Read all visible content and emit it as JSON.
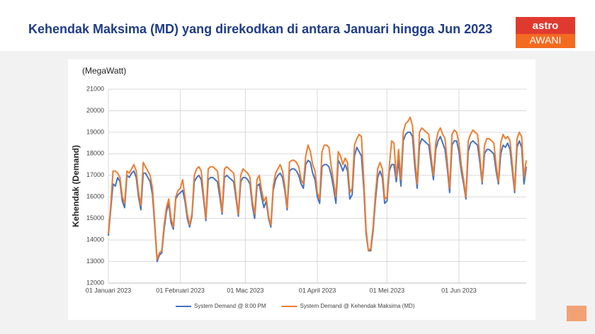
{
  "logo": {
    "top": "astro",
    "bottom": "AWANI"
  },
  "chart_data": {
    "type": "line",
    "title": "Kehendak Maksima (MD) yang direkodkan di antara Januari hingga Jun 2023",
    "unit_label": "(MegaWatt)",
    "y_label": "Kehendak (Demand)",
    "ylim": [
      12000,
      21000
    ],
    "yticks": [
      12000,
      13000,
      14000,
      15000,
      16000,
      17000,
      18000,
      19000,
      20000,
      21000
    ],
    "xlim": [
      "2023-01-01",
      "2023-06-30"
    ],
    "xticks": [
      {
        "value": "2023-01-01",
        "label": "01 Januari 2023"
      },
      {
        "value": "2023-02-01",
        "label": "01 Februari 2023"
      },
      {
        "value": "2023-03-01",
        "label": "01 Mac 2023"
      },
      {
        "value": "2023-04-01",
        "label": "01 April 2023"
      },
      {
        "value": "2023-05-01",
        "label": "01 Mei 2023"
      },
      {
        "value": "2023-06-01",
        "label": "01 Jun 2023"
      }
    ],
    "grid": true,
    "legend": "bottom",
    "x": [
      "2023-01-01",
      "2023-01-02",
      "2023-01-03",
      "2023-01-04",
      "2023-01-05",
      "2023-01-06",
      "2023-01-07",
      "2023-01-08",
      "2023-01-09",
      "2023-01-10",
      "2023-01-11",
      "2023-01-12",
      "2023-01-13",
      "2023-01-14",
      "2023-01-15",
      "2023-01-16",
      "2023-01-17",
      "2023-01-18",
      "2023-01-19",
      "2023-01-20",
      "2023-01-21",
      "2023-01-22",
      "2023-01-23",
      "2023-01-24",
      "2023-01-25",
      "2023-01-26",
      "2023-01-27",
      "2023-01-28",
      "2023-01-29",
      "2023-01-30",
      "2023-01-31",
      "2023-02-01",
      "2023-02-02",
      "2023-02-03",
      "2023-02-04",
      "2023-02-05",
      "2023-02-06",
      "2023-02-07",
      "2023-02-08",
      "2023-02-09",
      "2023-02-10",
      "2023-02-11",
      "2023-02-12",
      "2023-02-13",
      "2023-02-14",
      "2023-02-15",
      "2023-02-16",
      "2023-02-17",
      "2023-02-18",
      "2023-02-19",
      "2023-02-20",
      "2023-02-21",
      "2023-02-22",
      "2023-02-23",
      "2023-02-24",
      "2023-02-25",
      "2023-02-26",
      "2023-02-27",
      "2023-02-28",
      "2023-03-01",
      "2023-03-02",
      "2023-03-03",
      "2023-03-04",
      "2023-03-05",
      "2023-03-06",
      "2023-03-07",
      "2023-03-08",
      "2023-03-09",
      "2023-03-10",
      "2023-03-11",
      "2023-03-12",
      "2023-03-13",
      "2023-03-14",
      "2023-03-15",
      "2023-03-16",
      "2023-03-17",
      "2023-03-18",
      "2023-03-19",
      "2023-03-20",
      "2023-03-21",
      "2023-03-22",
      "2023-03-23",
      "2023-03-24",
      "2023-03-25",
      "2023-03-26",
      "2023-03-27",
      "2023-03-28",
      "2023-03-29",
      "2023-03-30",
      "2023-03-31",
      "2023-04-01",
      "2023-04-02",
      "2023-04-03",
      "2023-04-04",
      "2023-04-05",
      "2023-04-06",
      "2023-04-07",
      "2023-04-08",
      "2023-04-09",
      "2023-04-10",
      "2023-04-11",
      "2023-04-12",
      "2023-04-13",
      "2023-04-14",
      "2023-04-15",
      "2023-04-16",
      "2023-04-17",
      "2023-04-18",
      "2023-04-19",
      "2023-04-20",
      "2023-04-21",
      "2023-04-22",
      "2023-04-23",
      "2023-04-24",
      "2023-04-25",
      "2023-04-26",
      "2023-04-27",
      "2023-04-28",
      "2023-04-29",
      "2023-04-30",
      "2023-05-01",
      "2023-05-02",
      "2023-05-03",
      "2023-05-04",
      "2023-05-05",
      "2023-05-06",
      "2023-05-07",
      "2023-05-08",
      "2023-05-09",
      "2023-05-10",
      "2023-05-11",
      "2023-05-12",
      "2023-05-13",
      "2023-05-14",
      "2023-05-15",
      "2023-05-16",
      "2023-05-17",
      "2023-05-18",
      "2023-05-19",
      "2023-05-20",
      "2023-05-21",
      "2023-05-22",
      "2023-05-23",
      "2023-05-24",
      "2023-05-25",
      "2023-05-26",
      "2023-05-27",
      "2023-05-28",
      "2023-05-29",
      "2023-05-30",
      "2023-05-31",
      "2023-06-01",
      "2023-06-02",
      "2023-06-03",
      "2023-06-04",
      "2023-06-05",
      "2023-06-06",
      "2023-06-07",
      "2023-06-08",
      "2023-06-09",
      "2023-06-10",
      "2023-06-11",
      "2023-06-12",
      "2023-06-13",
      "2023-06-14",
      "2023-06-15",
      "2023-06-16",
      "2023-06-17",
      "2023-06-18",
      "2023-06-19",
      "2023-06-20",
      "2023-06-21",
      "2023-06-22",
      "2023-06-23",
      "2023-06-24",
      "2023-06-25",
      "2023-06-26",
      "2023-06-27",
      "2023-06-28",
      "2023-06-29",
      "2023-06-30"
    ],
    "series": [
      {
        "name": "System Demand @ 8:00 PM",
        "color": "#4472c4",
        "values": [
          14200,
          15400,
          16600,
          16500,
          16900,
          16700,
          15800,
          15500,
          17000,
          16900,
          17100,
          17200,
          16900,
          16000,
          15400,
          17100,
          17100,
          16900,
          16700,
          16100,
          14600,
          13000,
          13300,
          13400,
          14500,
          15300,
          15700,
          14800,
          14500,
          15900,
          16100,
          16200,
          16300,
          15800,
          15000,
          14600,
          15100,
          16700,
          16900,
          17000,
          16800,
          15900,
          14900,
          16800,
          16900,
          16900,
          16800,
          16700,
          16000,
          15200,
          16900,
          17000,
          16900,
          16800,
          16700,
          15900,
          15100,
          16700,
          16900,
          16900,
          16800,
          16600,
          15600,
          15000,
          16500,
          16600,
          16000,
          15500,
          15800,
          15000,
          14600,
          16300,
          16800,
          17000,
          17100,
          16900,
          16300,
          15400,
          17200,
          17300,
          17300,
          17200,
          17000,
          16600,
          16400,
          17500,
          17700,
          17600,
          17100,
          16800,
          16000,
          15700,
          17400,
          17500,
          17500,
          17400,
          17000,
          16400,
          15700,
          17700,
          17500,
          17200,
          17500,
          17200,
          15900,
          16100,
          17900,
          18300,
          18100,
          17900,
          16400,
          14300,
          13500,
          13500,
          14400,
          15800,
          16900,
          17200,
          16900,
          15700,
          15800,
          17200,
          17500,
          17500,
          16700,
          17700,
          16500,
          18600,
          18900,
          19000,
          19000,
          18800,
          17400,
          16400,
          18400,
          18700,
          18600,
          18500,
          18400,
          17600,
          16800,
          18200,
          18600,
          18800,
          18500,
          18200,
          17300,
          16200,
          18400,
          18600,
          18600,
          18100,
          17200,
          16600,
          15900,
          18100,
          18500,
          18600,
          18500,
          18400,
          17600,
          16600,
          18000,
          18200,
          18200,
          18100,
          18000,
          17200,
          16600,
          18000,
          18400,
          18300,
          18500,
          18200,
          17200,
          16200,
          18300,
          18600,
          18300,
          16600,
          17400
        ]
      },
      {
        "name": "System Demand @ Kehendak Maksima (MD)",
        "color": "#ed7d31",
        "values": [
          14300,
          15600,
          17200,
          17200,
          17100,
          16900,
          16000,
          15700,
          17200,
          17100,
          17300,
          17500,
          17200,
          16200,
          15600,
          17600,
          17400,
          17200,
          17000,
          16400,
          14800,
          13100,
          13400,
          13500,
          14700,
          15500,
          15900,
          15000,
          14600,
          16000,
          16300,
          16400,
          16800,
          16000,
          15200,
          14700,
          15200,
          17000,
          17300,
          17400,
          17200,
          16100,
          15000,
          17300,
          17400,
          17400,
          17300,
          17200,
          16300,
          15300,
          17300,
          17400,
          17300,
          17200,
          17100,
          16100,
          15200,
          17000,
          17300,
          17200,
          17100,
          16900,
          15800,
          15200,
          16800,
          17000,
          16300,
          15800,
          16000,
          15100,
          14700,
          16500,
          17100,
          17300,
          17500,
          17200,
          16500,
          15500,
          17600,
          17700,
          17700,
          17600,
          17400,
          16800,
          16600,
          17900,
          18400,
          18100,
          17500,
          17200,
          16200,
          15900,
          18100,
          18400,
          18400,
          18300,
          17400,
          16700,
          16000,
          18100,
          17900,
          17500,
          17800,
          17600,
          16200,
          16400,
          18400,
          18700,
          18900,
          18800,
          16800,
          14500,
          13500,
          13600,
          14600,
          16100,
          17300,
          17600,
          17300,
          15900,
          16000,
          17400,
          18600,
          18500,
          16900,
          18200,
          16800,
          19000,
          19400,
          19500,
          19700,
          19300,
          17800,
          16600,
          19000,
          19200,
          19100,
          19000,
          18900,
          17900,
          17000,
          18500,
          19000,
          19200,
          18900,
          18700,
          17600,
          16400,
          18900,
          19100,
          19000,
          18500,
          17500,
          16800,
          16000,
          18600,
          18900,
          19100,
          19000,
          18900,
          17900,
          16700,
          18400,
          18700,
          18700,
          18600,
          18500,
          17500,
          16700,
          18500,
          18900,
          18700,
          18800,
          18600,
          17500,
          16300,
          18700,
          19000,
          18800,
          16900,
          17700
        ]
      }
    ]
  }
}
